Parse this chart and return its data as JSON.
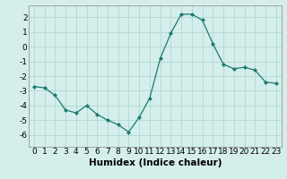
{
  "x": [
    0,
    1,
    2,
    3,
    4,
    5,
    6,
    7,
    8,
    9,
    10,
    11,
    12,
    13,
    14,
    15,
    16,
    17,
    18,
    19,
    20,
    21,
    22,
    23
  ],
  "y": [
    -2.7,
    -2.8,
    -3.3,
    -4.3,
    -4.5,
    -4.0,
    -4.6,
    -5.0,
    -5.3,
    -5.8,
    -4.8,
    -3.5,
    -0.8,
    0.9,
    2.2,
    2.2,
    1.8,
    0.2,
    -1.2,
    -1.5,
    -1.4,
    -1.6,
    -2.4,
    -2.5
  ],
  "line_color": "#1a7a6e",
  "marker": "D",
  "marker_size": 2.0,
  "background_color": "#d4eeeb",
  "grid_color": "#aad4cc",
  "xlabel": "Humidex (Indice chaleur)",
  "xlabel_fontsize": 7.5,
  "tick_fontsize": 6.5,
  "xlim": [
    -0.5,
    23.5
  ],
  "ylim": [
    -6.8,
    2.8
  ],
  "yticks": [
    -6,
    -5,
    -4,
    -3,
    -2,
    -1,
    0,
    1,
    2
  ],
  "xticks": [
    0,
    1,
    2,
    3,
    4,
    5,
    6,
    7,
    8,
    9,
    10,
    11,
    12,
    13,
    14,
    15,
    16,
    17,
    18,
    19,
    20,
    21,
    22,
    23
  ]
}
